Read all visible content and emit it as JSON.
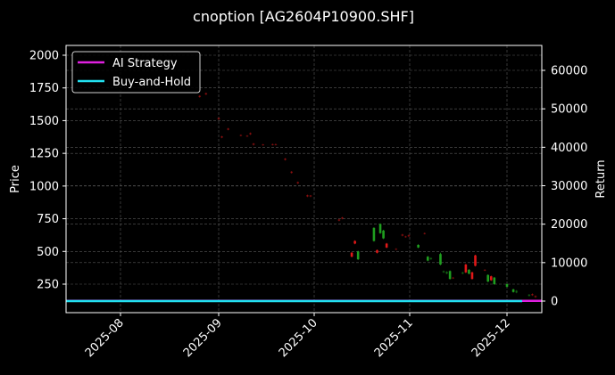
{
  "chart_data": {
    "type": "line",
    "title": "cnoption [AG2604P10900.SHF]",
    "xlabel": "",
    "ylabel": "Price",
    "ylabel_right": "Return",
    "x_ticks": [
      "2025-08",
      "2025-09",
      "2025-10",
      "2025-11",
      "2025-12"
    ],
    "y_ticks_left": [
      250,
      500,
      750,
      1000,
      1250,
      1500,
      1750,
      2000
    ],
    "y_ticks_right": [
      0,
      10000,
      20000,
      30000,
      40000,
      50000,
      60000
    ],
    "ylim_left": [
      50,
      2075
    ],
    "ylim_right": [
      -3000,
      66000
    ],
    "grid": true,
    "legend_position": "upper left",
    "legend": [
      {
        "name": "AI Strategy",
        "color": "#e020e0"
      },
      {
        "name": "Buy-and-Hold",
        "color": "#22e0f0"
      }
    ],
    "series": [
      {
        "name": "AI Strategy",
        "axis": "right",
        "color": "#e020e0",
        "values_approx": "flat near 0 across the range"
      },
      {
        "name": "Buy-and-Hold",
        "axis": "right",
        "color": "#22e0f0",
        "values_approx": "flat near 0 across the range"
      }
    ],
    "candles": [
      {
        "date": "2025-08-26",
        "open": 1690,
        "close": 1680,
        "high": 1695,
        "low": 1675,
        "dir": "down"
      },
      {
        "date": "2025-08-28",
        "open": 1710,
        "close": 1700,
        "high": 1715,
        "low": 1695,
        "dir": "down"
      },
      {
        "date": "2025-09-01",
        "open": 1520,
        "close": 1510,
        "high": 1525,
        "low": 1505,
        "dir": "down"
      },
      {
        "date": "2025-09-02",
        "open": 1380,
        "close": 1370,
        "high": 1385,
        "low": 1365,
        "dir": "down"
      },
      {
        "date": "2025-09-04",
        "open": 1440,
        "close": 1430,
        "high": 1445,
        "low": 1425,
        "dir": "down"
      },
      {
        "date": "2025-09-08",
        "open": 1390,
        "close": 1385,
        "high": 1395,
        "low": 1380,
        "dir": "down"
      },
      {
        "date": "2025-09-10",
        "open": 1385,
        "close": 1380,
        "high": 1390,
        "low": 1375,
        "dir": "down"
      },
      {
        "date": "2025-09-11",
        "open": 1405,
        "close": 1395,
        "high": 1410,
        "low": 1390,
        "dir": "down"
      },
      {
        "date": "2025-09-12",
        "open": 1325,
        "close": 1315,
        "high": 1330,
        "low": 1310,
        "dir": "down"
      },
      {
        "date": "2025-09-15",
        "open": 1318,
        "close": 1312,
        "high": 1322,
        "low": 1308,
        "dir": "down"
      },
      {
        "date": "2025-09-18",
        "open": 1320,
        "close": 1315,
        "high": 1325,
        "low": 1310,
        "dir": "down"
      },
      {
        "date": "2025-09-19",
        "open": 1320,
        "close": 1315,
        "high": 1325,
        "low": 1310,
        "dir": "down"
      },
      {
        "date": "2025-09-22",
        "open": 1210,
        "close": 1200,
        "high": 1215,
        "low": 1195,
        "dir": "down"
      },
      {
        "date": "2025-09-24",
        "open": 1110,
        "close": 1100,
        "high": 1115,
        "low": 1095,
        "dir": "down"
      },
      {
        "date": "2025-09-26",
        "open": 1030,
        "close": 1020,
        "high": 1035,
        "low": 1015,
        "dir": "down"
      },
      {
        "date": "2025-09-29",
        "open": 930,
        "close": 920,
        "high": 935,
        "low": 915,
        "dir": "down"
      },
      {
        "date": "2025-09-30",
        "open": 928,
        "close": 920,
        "high": 932,
        "low": 915,
        "dir": "down"
      },
      {
        "date": "2025-10-09",
        "open": 745,
        "close": 735,
        "high": 750,
        "low": 730,
        "dir": "down"
      },
      {
        "date": "2025-10-10",
        "open": 760,
        "close": 750,
        "high": 765,
        "low": 745,
        "dir": "down"
      },
      {
        "date": "2025-10-13",
        "open": 490,
        "close": 460,
        "high": 495,
        "low": 455,
        "dir": "down"
      },
      {
        "date": "2025-10-14",
        "open": 580,
        "close": 560,
        "high": 585,
        "low": 555,
        "dir": "down"
      },
      {
        "date": "2025-10-15",
        "open": 440,
        "close": 500,
        "high": 505,
        "low": 435,
        "dir": "up"
      },
      {
        "date": "2025-10-20",
        "open": 580,
        "close": 680,
        "high": 685,
        "low": 575,
        "dir": "up"
      },
      {
        "date": "2025-10-21",
        "open": 510,
        "close": 490,
        "high": 515,
        "low": 485,
        "dir": "down"
      },
      {
        "date": "2025-10-22",
        "open": 640,
        "close": 710,
        "high": 715,
        "low": 635,
        "dir": "up"
      },
      {
        "date": "2025-10-23",
        "open": 600,
        "close": 660,
        "high": 665,
        "low": 595,
        "dir": "up"
      },
      {
        "date": "2025-10-24",
        "open": 560,
        "close": 530,
        "high": 565,
        "low": 525,
        "dir": "down"
      },
      {
        "date": "2025-10-27",
        "open": 520,
        "close": 515,
        "high": 525,
        "low": 510,
        "dir": "down"
      },
      {
        "date": "2025-10-29",
        "open": 630,
        "close": 620,
        "high": 635,
        "low": 615,
        "dir": "down"
      },
      {
        "date": "2025-10-30",
        "open": 615,
        "close": 610,
        "high": 620,
        "low": 605,
        "dir": "down"
      },
      {
        "date": "2025-10-31",
        "open": 625,
        "close": 615,
        "high": 630,
        "low": 610,
        "dir": "down"
      },
      {
        "date": "2025-11-03",
        "open": 530,
        "close": 550,
        "high": 555,
        "low": 525,
        "dir": "up"
      },
      {
        "date": "2025-11-05",
        "open": 640,
        "close": 635,
        "high": 645,
        "low": 630,
        "dir": "down"
      },
      {
        "date": "2025-11-06",
        "open": 430,
        "close": 460,
        "high": 465,
        "low": 425,
        "dir": "up"
      },
      {
        "date": "2025-11-07",
        "open": 440,
        "close": 450,
        "high": 455,
        "low": 435,
        "dir": "up"
      },
      {
        "date": "2025-11-10",
        "open": 400,
        "close": 480,
        "high": 490,
        "low": 395,
        "dir": "up"
      },
      {
        "date": "2025-11-11",
        "open": 340,
        "close": 350,
        "high": 355,
        "low": 335,
        "dir": "up"
      },
      {
        "date": "2025-11-12",
        "open": 330,
        "close": 345,
        "high": 350,
        "low": 325,
        "dir": "up"
      },
      {
        "date": "2025-11-13",
        "open": 290,
        "close": 350,
        "high": 355,
        "low": 285,
        "dir": "up"
      },
      {
        "date": "2025-11-14",
        "open": 300,
        "close": 295,
        "high": 305,
        "low": 290,
        "dir": "down"
      },
      {
        "date": "2025-11-17",
        "open": 330,
        "close": 340,
        "high": 345,
        "low": 325,
        "dir": "up"
      },
      {
        "date": "2025-11-18",
        "open": 400,
        "close": 340,
        "high": 405,
        "low": 335,
        "dir": "down"
      },
      {
        "date": "2025-11-19",
        "open": 330,
        "close": 360,
        "high": 365,
        "low": 325,
        "dir": "up"
      },
      {
        "date": "2025-11-20",
        "open": 340,
        "close": 290,
        "high": 345,
        "low": 285,
        "dir": "down"
      },
      {
        "date": "2025-11-21",
        "open": 470,
        "close": 390,
        "high": 475,
        "low": 385,
        "dir": "down"
      },
      {
        "date": "2025-11-24",
        "open": 360,
        "close": 355,
        "high": 365,
        "low": 350,
        "dir": "down"
      },
      {
        "date": "2025-11-25",
        "open": 270,
        "close": 320,
        "high": 325,
        "low": 265,
        "dir": "up"
      },
      {
        "date": "2025-11-26",
        "open": 310,
        "close": 280,
        "high": 315,
        "low": 275,
        "dir": "down"
      },
      {
        "date": "2025-11-27",
        "open": 250,
        "close": 300,
        "high": 305,
        "low": 245,
        "dir": "up"
      },
      {
        "date": "2025-12-01",
        "open": 230,
        "close": 250,
        "high": 255,
        "low": 225,
        "dir": "up"
      },
      {
        "date": "2025-12-03",
        "open": 190,
        "close": 210,
        "high": 215,
        "low": 185,
        "dir": "up"
      },
      {
        "date": "2025-12-04",
        "open": 185,
        "close": 200,
        "high": 205,
        "low": 180,
        "dir": "up"
      },
      {
        "date": "2025-12-08",
        "open": 160,
        "close": 170,
        "high": 175,
        "low": 155,
        "dir": "up"
      },
      {
        "date": "2025-12-09",
        "open": 175,
        "close": 165,
        "high": 180,
        "low": 160,
        "dir": "down"
      },
      {
        "date": "2025-12-10",
        "open": 160,
        "close": 150,
        "high": 165,
        "low": 145,
        "dir": "down"
      }
    ]
  },
  "colors": {
    "background": "#000000",
    "axes": "#ffffff",
    "grid": "#5a5a5a",
    "up": "#1f9e1f",
    "down": "#e01818",
    "ai_strategy": "#e020e0",
    "buy_and_hold": "#22e0f0"
  }
}
